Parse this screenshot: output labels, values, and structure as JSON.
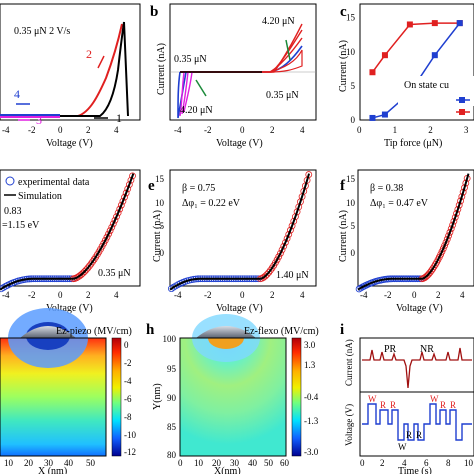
{
  "panels": {
    "a": {
      "xlabel": "Voltage (V)",
      "annotation": "0.35 μN   2 V/s",
      "sweep_labels": [
        "1",
        "2",
        "3",
        "4"
      ],
      "xticks": [
        "-4",
        "-2",
        "0",
        "2",
        "4"
      ]
    },
    "b": {
      "label": "b",
      "xlabel": "Voltage (V)",
      "ylabel": "Current (nA)",
      "xticks": [
        "-4",
        "-2",
        "0",
        "2",
        "4"
      ],
      "ann_top_left": "0.35 μN",
      "ann_top_right": "4.20 μN",
      "ann_bottom_left": "4.20 μN",
      "ann_bottom_right": "0.35 μN"
    },
    "c": {
      "label": "c",
      "xlabel": "Tip force (μN)",
      "ylabel": "Current (nA)",
      "xticks": [
        "0",
        "1",
        "2",
        "3"
      ],
      "yticks": [
        "0",
        "5",
        "10",
        "15"
      ],
      "legend_title": "On state cu",
      "header_text": "On state cu"
    },
    "d": {
      "legend_exp": "experimental data",
      "legend_sim": "Simulation",
      "beta_text": "0.83",
      "phi_text": "=1.15 eV",
      "force": "0.35 μN",
      "xlabel": "Voltage (V)",
      "xticks": [
        "-4",
        "-2",
        "0",
        "2",
        "4"
      ]
    },
    "e": {
      "label": "e",
      "ylabel": "Current (nA)",
      "xlabel": "Voltage (V)",
      "yticks": [
        "0",
        "5",
        "10",
        "15"
      ],
      "xticks": [
        "-4",
        "-2",
        "0",
        "2",
        "4"
      ],
      "beta_text": "β = 0.75",
      "phi_text": "Δφ₁ = 0.22 eV",
      "force": "1.40 μN"
    },
    "f": {
      "label": "f",
      "ylabel": "Current (nA)",
      "xlabel": "Voltage (V)",
      "yticks": [
        "0",
        "5",
        "10",
        "15"
      ],
      "xticks": [
        "-4",
        "-2",
        "0",
        "2",
        "4"
      ],
      "beta_text": "β = 0.38",
      "phi_text": "Δφ₁ = 0.47 eV"
    },
    "g": {
      "title": "Ez-piezo (MV/cm)",
      "xlabel": "X (nm)",
      "xticks": [
        "10",
        "20",
        "30",
        "40",
        "50"
      ],
      "colorbar_ticks": [
        "0",
        "-2",
        "-4",
        "-6",
        "-8",
        "-10",
        "-12"
      ]
    },
    "h": {
      "label": "h",
      "title": "Ez-flexo (MV/cm)",
      "xlabel": "X(nm)",
      "ylabel": "Y(nm)",
      "xticks": [
        "0",
        "10",
        "20",
        "30",
        "40",
        "50",
        "60"
      ],
      "yticks": [
        "100",
        "95",
        "90",
        "85",
        "80"
      ],
      "colorbar_ticks": [
        "3.0",
        "1.3",
        "-0.4",
        "-1.3",
        "-3.0"
      ]
    },
    "i": {
      "label": "i",
      "xlabel": "Time (s)",
      "ylabel_top": "Current (nA)",
      "ylabel_bottom": "Voltage (V)",
      "xticks": [
        "0",
        "2",
        "4",
        "6",
        "8",
        "10"
      ],
      "pr": "PR",
      "nr": "NR",
      "w": "W",
      "r": "R"
    }
  },
  "colors": {
    "red": "#e02020",
    "black": "#000000",
    "blue": "#1f3fd0",
    "magenta": "#e020e0",
    "darkred": "#a01010"
  },
  "chart_data": [
    {
      "type": "line",
      "panel": "c",
      "xlabel": "Tip force (μN)",
      "ylabel": "Current (nA)",
      "xlim": [
        0,
        3.2
      ],
      "ylim": [
        0,
        17
      ],
      "x": [
        0.35,
        0.7,
        1.4,
        2.1,
        2.8
      ],
      "series": [
        {
          "color": "#e02020",
          "values": [
            7,
            9.5,
            14,
            14.2,
            14.2
          ]
        },
        {
          "color": "#1f3fd0",
          "values": [
            0.3,
            0.8,
            4,
            9.5,
            14.2
          ]
        }
      ]
    },
    {
      "type": "scatter",
      "panel": "d",
      "xlabel": "Voltage (V)",
      "xlim": [
        -5,
        5.5
      ],
      "ylim": [
        -1,
        15
      ],
      "note": "experimental data (circles) vs simulation (line), I-V with rectifying shape"
    }
  ]
}
